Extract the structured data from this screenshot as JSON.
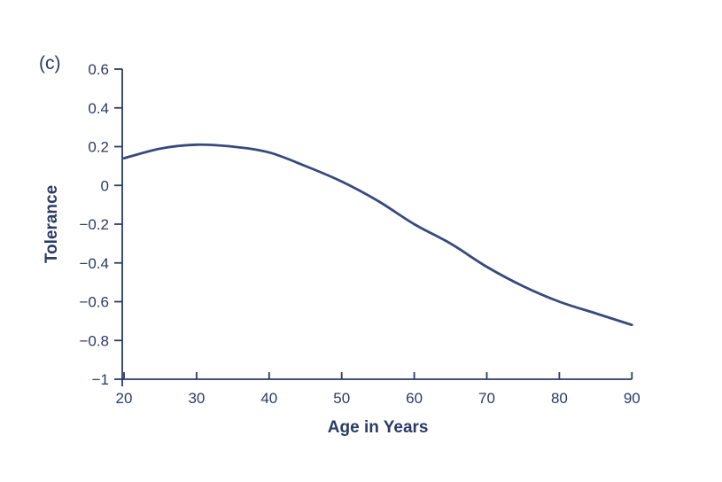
{
  "panel_label": "(c)",
  "colors": {
    "ink": "#2b3a67",
    "curve": "#364a7c",
    "background": "#ffffff"
  },
  "chart_data": {
    "type": "line",
    "title": "",
    "xlabel": "Age in Years",
    "ylabel": "Tolerance",
    "xlim": [
      20,
      90
    ],
    "ylim": [
      -1,
      0.6
    ],
    "grid": false,
    "legend": "none",
    "xticks": [
      20,
      30,
      40,
      50,
      60,
      70,
      80,
      90
    ],
    "xtick_labels": [
      "20",
      "30",
      "40",
      "50",
      "60",
      "70",
      "80",
      "90"
    ],
    "yticks": [
      0.6,
      0.4,
      0.2,
      0,
      -0.2,
      -0.4,
      -0.6,
      -0.8,
      -1
    ],
    "ytick_labels": [
      "0.6",
      "0.4",
      "0.2",
      "0",
      "−0.2",
      "−0.4",
      "−0.6",
      "−0.8",
      "−1"
    ],
    "series": [
      {
        "name": "Tolerance",
        "x": [
          20,
          25,
          30,
          35,
          40,
          45,
          50,
          55,
          60,
          65,
          70,
          75,
          80,
          85,
          90
        ],
        "y": [
          0.14,
          0.19,
          0.21,
          0.2,
          0.17,
          0.1,
          0.02,
          -0.08,
          -0.2,
          -0.3,
          -0.42,
          -0.52,
          -0.6,
          -0.66,
          -0.72
        ]
      }
    ]
  }
}
